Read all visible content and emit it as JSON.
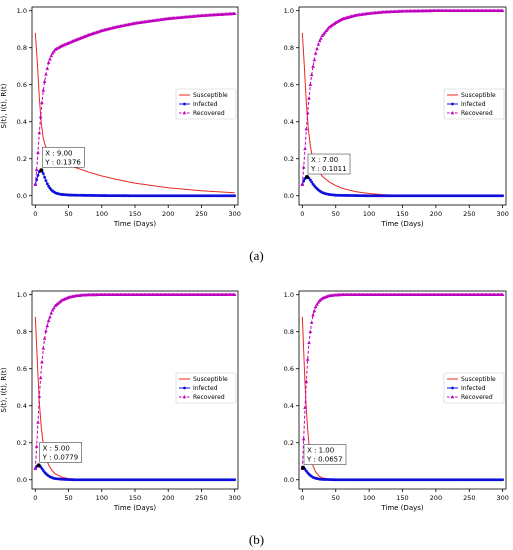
{
  "captions": [
    "(a)",
    "(b)"
  ],
  "chart_data": [
    {
      "type": "line",
      "panel": "a-left",
      "xlabel": "Time (Days)",
      "ylabel": "S(t), I(t), R(t)",
      "xlim": [
        -5,
        305
      ],
      "ylim": [
        -0.05,
        1.02
      ],
      "xticks": [
        0,
        50,
        100,
        150,
        200,
        250,
        300
      ],
      "yticks": [
        0,
        0.2,
        0.4,
        0.6,
        0.8,
        1.0
      ],
      "legend": "right-middle",
      "series": [
        {
          "name": "Susceptible",
          "color": "#e8281e",
          "style": "solid",
          "marker": "none",
          "x": [
            0,
            3,
            6,
            9,
            12,
            15,
            20,
            25,
            30,
            40,
            50,
            60,
            80,
            100,
            120,
            150,
            200,
            250,
            300
          ],
          "y": [
            0.88,
            0.72,
            0.53,
            0.39,
            0.31,
            0.27,
            0.24,
            0.22,
            0.205,
            0.185,
            0.168,
            0.153,
            0.128,
            0.107,
            0.09,
            0.068,
            0.043,
            0.027,
            0.016
          ]
        },
        {
          "name": "Infected",
          "color": "#1010dd",
          "style": "solid",
          "marker": "dot",
          "x": [
            0,
            3,
            6,
            9,
            12,
            15,
            18,
            21,
            25,
            30,
            35,
            40,
            50,
            60,
            80,
            100,
            150,
            200,
            250,
            300
          ],
          "y": [
            0.06,
            0.1,
            0.13,
            0.1376,
            0.12,
            0.09,
            0.065,
            0.045,
            0.028,
            0.016,
            0.01,
            0.007,
            0.004,
            0.003,
            0.002,
            0.001,
            0.0,
            0.0,
            0.0,
            0.0
          ]
        },
        {
          "name": "Recovered",
          "color": "#c000c0",
          "style": "dashed",
          "marker": "triangle",
          "x": [
            0,
            3,
            6,
            9,
            12,
            15,
            20,
            25,
            30,
            40,
            50,
            60,
            80,
            100,
            120,
            150,
            200,
            250,
            300
          ],
          "y": [
            0.06,
            0.18,
            0.34,
            0.47,
            0.57,
            0.64,
            0.72,
            0.765,
            0.79,
            0.81,
            0.825,
            0.84,
            0.868,
            0.892,
            0.91,
            0.932,
            0.957,
            0.973,
            0.984
          ]
        }
      ],
      "annotation": {
        "x": 9,
        "y": 0.1376,
        "x_label": "X : 9.00",
        "y_label": "Y : 0.1376"
      }
    },
    {
      "type": "line",
      "panel": "a-right",
      "xlabel": "Time (Days)",
      "ylabel": "",
      "xlim": [
        -5,
        305
      ],
      "ylim": [
        -0.05,
        1.02
      ],
      "xticks": [
        0,
        50,
        100,
        150,
        200,
        250,
        300
      ],
      "yticks": [
        0,
        0.2,
        0.4,
        0.6,
        0.8,
        1.0
      ],
      "legend": "right-middle",
      "series": [
        {
          "name": "Susceptible",
          "color": "#e8281e",
          "style": "solid",
          "marker": "none",
          "x": [
            0,
            3,
            6,
            9,
            12,
            15,
            20,
            25,
            30,
            40,
            50,
            60,
            80,
            100,
            120,
            150,
            200,
            250,
            300
          ],
          "y": [
            0.88,
            0.7,
            0.5,
            0.36,
            0.27,
            0.21,
            0.16,
            0.13,
            0.105,
            0.075,
            0.055,
            0.04,
            0.022,
            0.012,
            0.006,
            0.002,
            0.0,
            0.0,
            0.0
          ]
        },
        {
          "name": "Infected",
          "color": "#1010dd",
          "style": "solid",
          "marker": "dot",
          "x": [
            0,
            3,
            7,
            10,
            13,
            16,
            20,
            25,
            30,
            35,
            40,
            50,
            60,
            80,
            100,
            150,
            200,
            250,
            300
          ],
          "y": [
            0.06,
            0.09,
            0.1011,
            0.095,
            0.08,
            0.063,
            0.045,
            0.028,
            0.017,
            0.011,
            0.007,
            0.003,
            0.002,
            0.001,
            0.0,
            0.0,
            0.0,
            0.0,
            0.0
          ]
        },
        {
          "name": "Recovered",
          "color": "#c000c0",
          "style": "dashed",
          "marker": "triangle",
          "x": [
            0,
            3,
            6,
            9,
            12,
            15,
            20,
            25,
            30,
            40,
            50,
            60,
            80,
            100,
            120,
            150,
            200,
            250,
            300
          ],
          "y": [
            0.06,
            0.2,
            0.36,
            0.49,
            0.6,
            0.68,
            0.77,
            0.83,
            0.865,
            0.91,
            0.935,
            0.955,
            0.975,
            0.985,
            0.992,
            0.997,
            1.0,
            1.0,
            1.0
          ]
        }
      ],
      "annotation": {
        "x": 7,
        "y": 0.1011,
        "x_label": "X : 7.00",
        "y_label": "Y : 0.1011"
      }
    },
    {
      "type": "line",
      "panel": "b-left",
      "xlabel": "Time (Days)",
      "ylabel": "S(t), I(t), R(t)",
      "xlim": [
        -5,
        305
      ],
      "ylim": [
        -0.05,
        1.02
      ],
      "xticks": [
        0,
        50,
        100,
        150,
        200,
        250,
        300
      ],
      "yticks": [
        0,
        0.2,
        0.4,
        0.6,
        0.8,
        1.0
      ],
      "legend": "right-middle",
      "series": [
        {
          "name": "Susceptible",
          "color": "#e8281e",
          "style": "solid",
          "marker": "none",
          "x": [
            0,
            3,
            6,
            9,
            12,
            15,
            20,
            25,
            30,
            40,
            50,
            60,
            80,
            100,
            150,
            200,
            250,
            300
          ],
          "y": [
            0.88,
            0.64,
            0.42,
            0.28,
            0.19,
            0.13,
            0.08,
            0.05,
            0.032,
            0.014,
            0.006,
            0.003,
            0.001,
            0.0,
            0.0,
            0.0,
            0.0,
            0.0
          ]
        },
        {
          "name": "Infected",
          "color": "#1010dd",
          "style": "solid",
          "marker": "dot",
          "x": [
            0,
            2,
            5,
            8,
            11,
            14,
            18,
            22,
            26,
            30,
            40,
            50,
            60,
            80,
            100,
            150,
            200,
            250,
            300
          ],
          "y": [
            0.06,
            0.072,
            0.0779,
            0.07,
            0.055,
            0.04,
            0.026,
            0.016,
            0.01,
            0.006,
            0.003,
            0.001,
            0.0,
            0.0,
            0.0,
            0.0,
            0.0,
            0.0,
            0.0
          ]
        },
        {
          "name": "Recovered",
          "color": "#c000c0",
          "style": "dashed",
          "marker": "triangle",
          "x": [
            0,
            3,
            6,
            9,
            12,
            15,
            20,
            25,
            30,
            40,
            50,
            60,
            70,
            80,
            100,
            150,
            200,
            250,
            300
          ],
          "y": [
            0.06,
            0.24,
            0.45,
            0.6,
            0.71,
            0.79,
            0.86,
            0.91,
            0.94,
            0.97,
            0.985,
            0.993,
            0.997,
            0.999,
            1.0,
            1.0,
            1.0,
            1.0,
            1.0
          ]
        }
      ],
      "annotation": {
        "x": 5,
        "y": 0.0779,
        "x_label": "X : 5.00",
        "y_label": "Y : 0.0779"
      }
    },
    {
      "type": "line",
      "panel": "b-right",
      "xlabel": "Time (Days)",
      "ylabel": "",
      "xlim": [
        -5,
        305
      ],
      "ylim": [
        -0.05,
        1.02
      ],
      "xticks": [
        0,
        50,
        100,
        150,
        200,
        250,
        300
      ],
      "yticks": [
        0,
        0.2,
        0.4,
        0.6,
        0.8,
        1.0
      ],
      "legend": "right-middle",
      "series": [
        {
          "name": "Susceptible",
          "color": "#e8281e",
          "style": "solid",
          "marker": "none",
          "x": [
            0,
            2,
            4,
            6,
            8,
            10,
            13,
            16,
            20,
            25,
            30,
            40,
            50,
            60,
            80,
            100,
            150,
            200,
            250,
            300
          ],
          "y": [
            0.88,
            0.7,
            0.52,
            0.38,
            0.27,
            0.19,
            0.12,
            0.075,
            0.042,
            0.02,
            0.01,
            0.003,
            0.001,
            0.0,
            0.0,
            0.0,
            0.0,
            0.0,
            0.0,
            0.0
          ]
        },
        {
          "name": "Infected",
          "color": "#1010dd",
          "style": "solid",
          "marker": "dot",
          "x": [
            0,
            1,
            3,
            5,
            7,
            10,
            13,
            16,
            20,
            25,
            30,
            40,
            50,
            80,
            100,
            150,
            200,
            250,
            300
          ],
          "y": [
            0.06,
            0.0657,
            0.062,
            0.052,
            0.042,
            0.03,
            0.02,
            0.013,
            0.008,
            0.004,
            0.002,
            0.001,
            0.0,
            0.0,
            0.0,
            0.0,
            0.0,
            0.0,
            0.0
          ]
        },
        {
          "name": "Recovered",
          "color": "#c000c0",
          "style": "dashed",
          "marker": "triangle",
          "x": [
            0,
            2,
            4,
            6,
            8,
            10,
            13,
            16,
            20,
            25,
            30,
            40,
            50,
            60,
            80,
            100,
            150,
            200,
            250,
            300
          ],
          "y": [
            0.06,
            0.22,
            0.39,
            0.53,
            0.65,
            0.74,
            0.83,
            0.89,
            0.935,
            0.965,
            0.98,
            0.994,
            0.998,
            1.0,
            1.0,
            1.0,
            1.0,
            1.0,
            1.0,
            1.0
          ]
        }
      ],
      "annotation": {
        "x": 1,
        "y": 0.0657,
        "x_label": "X : 1.00",
        "y_label": "Y : 0.0657"
      }
    }
  ]
}
